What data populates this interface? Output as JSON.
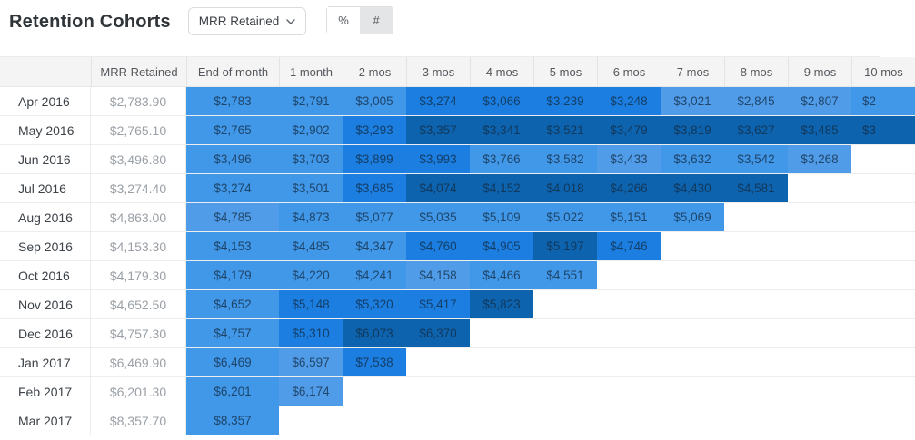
{
  "header": {
    "title": "Retention Cohorts",
    "metric_dropdown": {
      "selected": "MRR Retained"
    },
    "display_toggle": {
      "percent_label": "%",
      "count_label": "#",
      "selected": "#"
    }
  },
  "palette": {
    "b": "#4197E8",
    "l": "#509CE9",
    "m": "#1B7EE0",
    "d": "#0E63AE"
  },
  "table": {
    "columns": [
      "",
      "MRR Retained",
      "End of month",
      "1 month",
      "2 mos",
      "3 mos",
      "4 mos",
      "5 mos",
      "6 mos",
      "7 mos",
      "8 mos",
      "9 mos",
      "10 mos"
    ],
    "rows": [
      {
        "cohort": "Apr 2016",
        "mrr_retained": "$2,783.90",
        "cells": [
          {
            "v": "$2,783",
            "s": "b"
          },
          {
            "v": "$2,791",
            "s": "b"
          },
          {
            "v": "$3,005",
            "s": "b"
          },
          {
            "v": "$3,274",
            "s": "m"
          },
          {
            "v": "$3,066",
            "s": "m"
          },
          {
            "v": "$3,239",
            "s": "m"
          },
          {
            "v": "$3,248",
            "s": "m"
          },
          {
            "v": "$3,021",
            "s": "l"
          },
          {
            "v": "$2,845",
            "s": "l"
          },
          {
            "v": "$2,807",
            "s": "l"
          },
          {
            "v": "$2",
            "s": "b",
            "p": true
          }
        ]
      },
      {
        "cohort": "May 2016",
        "mrr_retained": "$2,765.10",
        "cells": [
          {
            "v": "$2,765",
            "s": "b"
          },
          {
            "v": "$2,902",
            "s": "b"
          },
          {
            "v": "$3,293",
            "s": "m"
          },
          {
            "v": "$3,357",
            "s": "d"
          },
          {
            "v": "$3,341",
            "s": "d"
          },
          {
            "v": "$3,521",
            "s": "d"
          },
          {
            "v": "$3,479",
            "s": "d"
          },
          {
            "v": "$3,819",
            "s": "d"
          },
          {
            "v": "$3,627",
            "s": "d"
          },
          {
            "v": "$3,485",
            "s": "d"
          },
          {
            "v": "$3",
            "s": "d",
            "p": true
          }
        ]
      },
      {
        "cohort": "Jun 2016",
        "mrr_retained": "$3,496.80",
        "cells": [
          {
            "v": "$3,496",
            "s": "b"
          },
          {
            "v": "$3,703",
            "s": "b"
          },
          {
            "v": "$3,899",
            "s": "m"
          },
          {
            "v": "$3,993",
            "s": "m"
          },
          {
            "v": "$3,766",
            "s": "b"
          },
          {
            "v": "$3,582",
            "s": "b"
          },
          {
            "v": "$3,433",
            "s": "l"
          },
          {
            "v": "$3,632",
            "s": "b"
          },
          {
            "v": "$3,542",
            "s": "b"
          },
          {
            "v": "$3,268",
            "s": "l"
          }
        ]
      },
      {
        "cohort": "Jul 2016",
        "mrr_retained": "$3,274.40",
        "cells": [
          {
            "v": "$3,274",
            "s": "b"
          },
          {
            "v": "$3,501",
            "s": "b"
          },
          {
            "v": "$3,685",
            "s": "m"
          },
          {
            "v": "$4,074",
            "s": "d"
          },
          {
            "v": "$4,152",
            "s": "d"
          },
          {
            "v": "$4,018",
            "s": "d"
          },
          {
            "v": "$4,266",
            "s": "d"
          },
          {
            "v": "$4,430",
            "s": "d"
          },
          {
            "v": "$4,581",
            "s": "d"
          }
        ]
      },
      {
        "cohort": "Aug 2016",
        "mrr_retained": "$4,863.00",
        "cells": [
          {
            "v": "$4,785",
            "s": "l"
          },
          {
            "v": "$4,873",
            "s": "b"
          },
          {
            "v": "$5,077",
            "s": "b"
          },
          {
            "v": "$5,035",
            "s": "b"
          },
          {
            "v": "$5,109",
            "s": "b"
          },
          {
            "v": "$5,022",
            "s": "b"
          },
          {
            "v": "$5,151",
            "s": "b"
          },
          {
            "v": "$5,069",
            "s": "b"
          }
        ]
      },
      {
        "cohort": "Sep 2016",
        "mrr_retained": "$4,153.30",
        "cells": [
          {
            "v": "$4,153",
            "s": "b"
          },
          {
            "v": "$4,485",
            "s": "b"
          },
          {
            "v": "$4,347",
            "s": "b"
          },
          {
            "v": "$4,760",
            "s": "m"
          },
          {
            "v": "$4,905",
            "s": "m"
          },
          {
            "v": "$5,197",
            "s": "d"
          },
          {
            "v": "$4,746",
            "s": "m"
          }
        ]
      },
      {
        "cohort": "Oct 2016",
        "mrr_retained": "$4,179.30",
        "cells": [
          {
            "v": "$4,179",
            "s": "b"
          },
          {
            "v": "$4,220",
            "s": "b"
          },
          {
            "v": "$4,241",
            "s": "b"
          },
          {
            "v": "$4,158",
            "s": "l"
          },
          {
            "v": "$4,466",
            "s": "b"
          },
          {
            "v": "$4,551",
            "s": "b"
          }
        ]
      },
      {
        "cohort": "Nov 2016",
        "mrr_retained": "$4,652.50",
        "cells": [
          {
            "v": "$4,652",
            "s": "b"
          },
          {
            "v": "$5,148",
            "s": "m"
          },
          {
            "v": "$5,320",
            "s": "m"
          },
          {
            "v": "$5,417",
            "s": "m"
          },
          {
            "v": "$5,823",
            "s": "d"
          }
        ]
      },
      {
        "cohort": "Dec 2016",
        "mrr_retained": "$4,757.30",
        "cells": [
          {
            "v": "$4,757",
            "s": "b"
          },
          {
            "v": "$5,310",
            "s": "m"
          },
          {
            "v": "$6,073",
            "s": "d"
          },
          {
            "v": "$6,370",
            "s": "d"
          }
        ]
      },
      {
        "cohort": "Jan 2017",
        "mrr_retained": "$6,469.90",
        "cells": [
          {
            "v": "$6,469",
            "s": "b"
          },
          {
            "v": "$6,597",
            "s": "l"
          },
          {
            "v": "$7,538",
            "s": "m"
          }
        ]
      },
      {
        "cohort": "Feb 2017",
        "mrr_retained": "$6,201.30",
        "cells": [
          {
            "v": "$6,201",
            "s": "b"
          },
          {
            "v": "$6,174",
            "s": "l"
          }
        ]
      },
      {
        "cohort": "Mar 2017",
        "mrr_retained": "$8,357.70",
        "cells": [
          {
            "v": "$8,357",
            "s": "b"
          }
        ]
      }
    ]
  }
}
